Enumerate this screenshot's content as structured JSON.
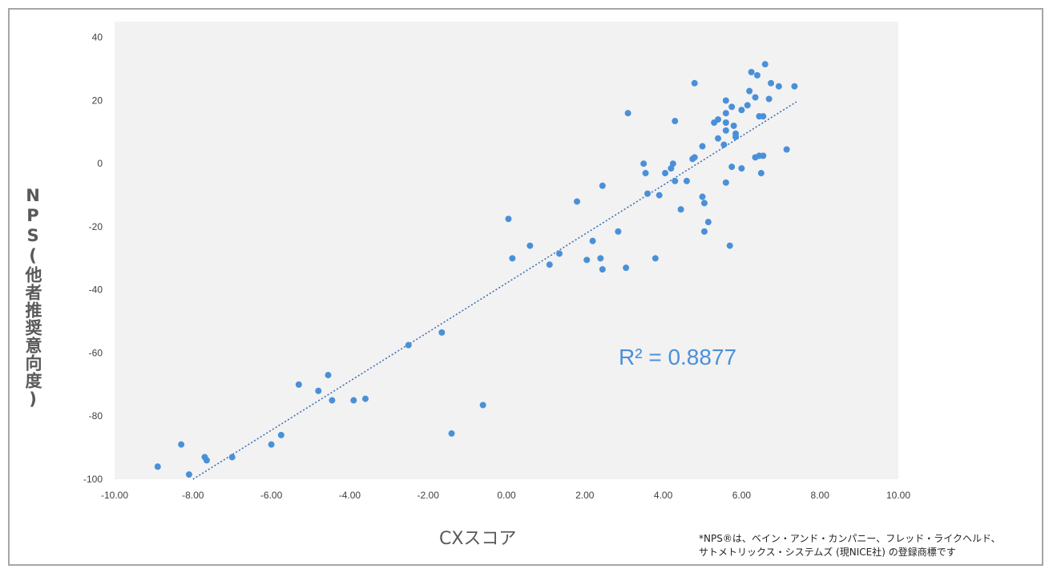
{
  "chart_data": {
    "type": "scatter",
    "xlabel": "CXスコア",
    "ylabel": "NPS(他者推奨意向度)",
    "xlim": [
      -10,
      10
    ],
    "ylim": [
      -100,
      45
    ],
    "x_ticks": [
      "-10.00",
      "-8.00",
      "-6.00",
      "-4.00",
      "-2.00",
      "0.00",
      "2.00",
      "4.00",
      "6.00",
      "8.00",
      "10.00"
    ],
    "y_ticks": [
      "40",
      "20",
      "0",
      "-20",
      "-40",
      "-60",
      "-80",
      "-100"
    ],
    "annotation": "R² = 0.8877",
    "trendline": {
      "style": "dotted linear",
      "x": [
        -8.0,
        7.4
      ],
      "y": [
        -100.5,
        19.6
      ]
    },
    "colors": {
      "points": "#4a90d9",
      "trendline": "#3f6fb5",
      "plot_background": "#f2f2f2"
    },
    "grid": false,
    "legend": "none",
    "points": [
      [
        -8.9,
        -96
      ],
      [
        -8.3,
        -89
      ],
      [
        -8.1,
        -98.5
      ],
      [
        -7.7,
        -93
      ],
      [
        -7.65,
        -94
      ],
      [
        -7.0,
        -93
      ],
      [
        -6.0,
        -89
      ],
      [
        -5.75,
        -86
      ],
      [
        -5.3,
        -70
      ],
      [
        -4.8,
        -72
      ],
      [
        -4.55,
        -67
      ],
      [
        -4.45,
        -75
      ],
      [
        -3.9,
        -75
      ],
      [
        -3.6,
        -74.5
      ],
      [
        -2.5,
        -57.5
      ],
      [
        -1.65,
        -53.5
      ],
      [
        -1.4,
        -85.5
      ],
      [
        -0.6,
        -76.5
      ],
      [
        0.05,
        -17.5
      ],
      [
        0.15,
        -30
      ],
      [
        0.6,
        -26
      ],
      [
        1.1,
        -32
      ],
      [
        1.35,
        -28.5
      ],
      [
        1.8,
        -12
      ],
      [
        2.05,
        -30.5
      ],
      [
        2.2,
        -24.5
      ],
      [
        2.4,
        -30
      ],
      [
        2.45,
        -7
      ],
      [
        2.45,
        -33.5
      ],
      [
        2.85,
        -21.5
      ],
      [
        3.05,
        -33
      ],
      [
        3.1,
        16
      ],
      [
        3.5,
        0
      ],
      [
        3.55,
        -3
      ],
      [
        3.6,
        -9.5
      ],
      [
        3.8,
        -30
      ],
      [
        3.9,
        -10
      ],
      [
        4.05,
        -3
      ],
      [
        4.2,
        -1.5
      ],
      [
        4.25,
        0
      ],
      [
        4.3,
        13.5
      ],
      [
        4.3,
        -5.5
      ],
      [
        4.45,
        -14.5
      ],
      [
        4.6,
        -5.5
      ],
      [
        4.75,
        1.5
      ],
      [
        4.8,
        25.5
      ],
      [
        4.8,
        2
      ],
      [
        5.0,
        5.5
      ],
      [
        5.0,
        -10.5
      ],
      [
        5.05,
        -12.5
      ],
      [
        5.05,
        -21.5
      ],
      [
        5.15,
        -18.5
      ],
      [
        5.3,
        13
      ],
      [
        5.4,
        14
      ],
      [
        5.4,
        8
      ],
      [
        5.55,
        6
      ],
      [
        5.6,
        20
      ],
      [
        5.6,
        13
      ],
      [
        5.6,
        10.5
      ],
      [
        5.6,
        16
      ],
      [
        5.6,
        -6
      ],
      [
        5.7,
        -26
      ],
      [
        5.75,
        18
      ],
      [
        5.8,
        12
      ],
      [
        5.75,
        -1
      ],
      [
        5.85,
        9.5
      ],
      [
        5.85,
        8.5
      ],
      [
        6.0,
        17
      ],
      [
        6.0,
        -1.5
      ],
      [
        6.15,
        18.5
      ],
      [
        6.2,
        23
      ],
      [
        6.25,
        29
      ],
      [
        6.35,
        21
      ],
      [
        6.35,
        2
      ],
      [
        6.4,
        28
      ],
      [
        6.45,
        15
      ],
      [
        6.45,
        2.5
      ],
      [
        6.55,
        15
      ],
      [
        6.55,
        2.5
      ],
      [
        6.5,
        -3
      ],
      [
        6.6,
        31.5
      ],
      [
        6.7,
        20.5
      ],
      [
        6.75,
        25.5
      ],
      [
        6.95,
        24.5
      ],
      [
        7.15,
        4.5
      ],
      [
        7.35,
        24.5
      ]
    ]
  },
  "footnote": {
    "line1": "*NPS®は、ベイン・アンド・カンパニー、フレッド・ライクヘルド、",
    "line2": "サトメトリックス・システムズ (現NICE社) の登録商標です"
  }
}
